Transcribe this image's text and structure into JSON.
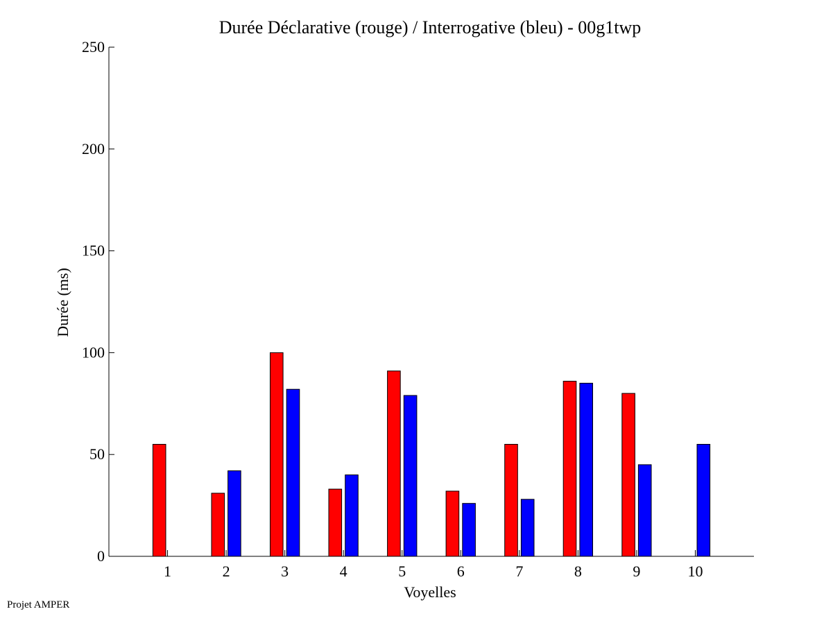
{
  "footer": {
    "credit": "Projet AMPER"
  },
  "colors": {
    "declarative": "#ff0000",
    "interrogative": "#0000ff",
    "axis": "#000000",
    "background": "#ffffff"
  },
  "chart_data": {
    "type": "bar",
    "title": "Durée Déclarative (rouge) / Interrogative (bleu) - 00g1twp",
    "xlabel": "Voyelles",
    "ylabel": "Durée (ms)",
    "categories": [
      "1",
      "2",
      "3",
      "4",
      "5",
      "6",
      "7",
      "8",
      "9",
      "10"
    ],
    "ylim": [
      0,
      250
    ],
    "yticks": [
      0,
      50,
      100,
      150,
      200,
      250
    ],
    "xlim": [
      0,
      11
    ],
    "grid": false,
    "series": [
      {
        "color": "#ff0000",
        "values": [
          55,
          31,
          100,
          33,
          91,
          32,
          55,
          86,
          80,
          0
        ]
      },
      {
        "color": "#0000ff",
        "values": [
          0,
          42,
          82,
          40,
          79,
          26,
          28,
          85,
          45,
          55
        ]
      }
    ]
  }
}
